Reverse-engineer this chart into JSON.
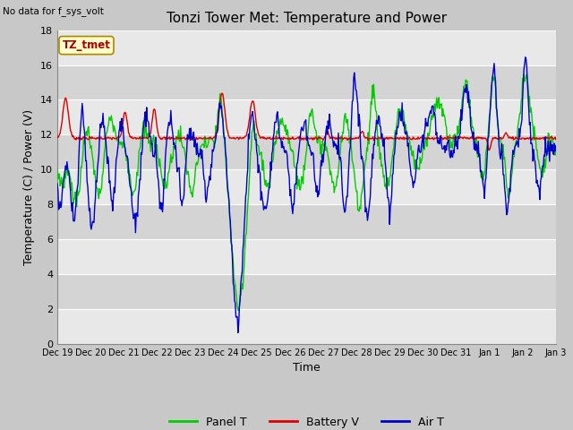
{
  "title": "Tonzi Tower Met: Temperature and Power",
  "no_data_label": "No data for f_sys_volt",
  "ylabel": "Temperature (C) / Power (V)",
  "xlabel": "Time",
  "legend_label": "TZ_tmet",
  "ylim": [
    0,
    18
  ],
  "series": [
    "Panel T",
    "Battery V",
    "Air T"
  ],
  "colors": [
    "#00cc00",
    "#dd0000",
    "#0000cc"
  ],
  "yticks": [
    0,
    2,
    4,
    6,
    8,
    10,
    12,
    14,
    16,
    18
  ],
  "x_tick_labels": [
    "Dec 19",
    "Dec 20",
    "Dec 21",
    "Dec 22",
    "Dec 23",
    "Dec 24",
    "Dec 25",
    "Dec 26",
    "Dec 27",
    "Dec 28",
    "Dec 29",
    "Dec 30",
    "Dec 31",
    "Jan 1",
    "Jan 2",
    "Jan 3"
  ],
  "x_tick_positions": [
    0,
    24,
    48,
    72,
    96,
    120,
    144,
    168,
    192,
    216,
    240,
    264,
    288,
    312,
    336,
    360
  ],
  "band_colors": [
    "#e8e8e8",
    "#d8d8d8"
  ],
  "title_fontsize": 11,
  "label_fontsize": 9,
  "tick_fontsize": 8,
  "fig_bg": "#d0d0d0"
}
